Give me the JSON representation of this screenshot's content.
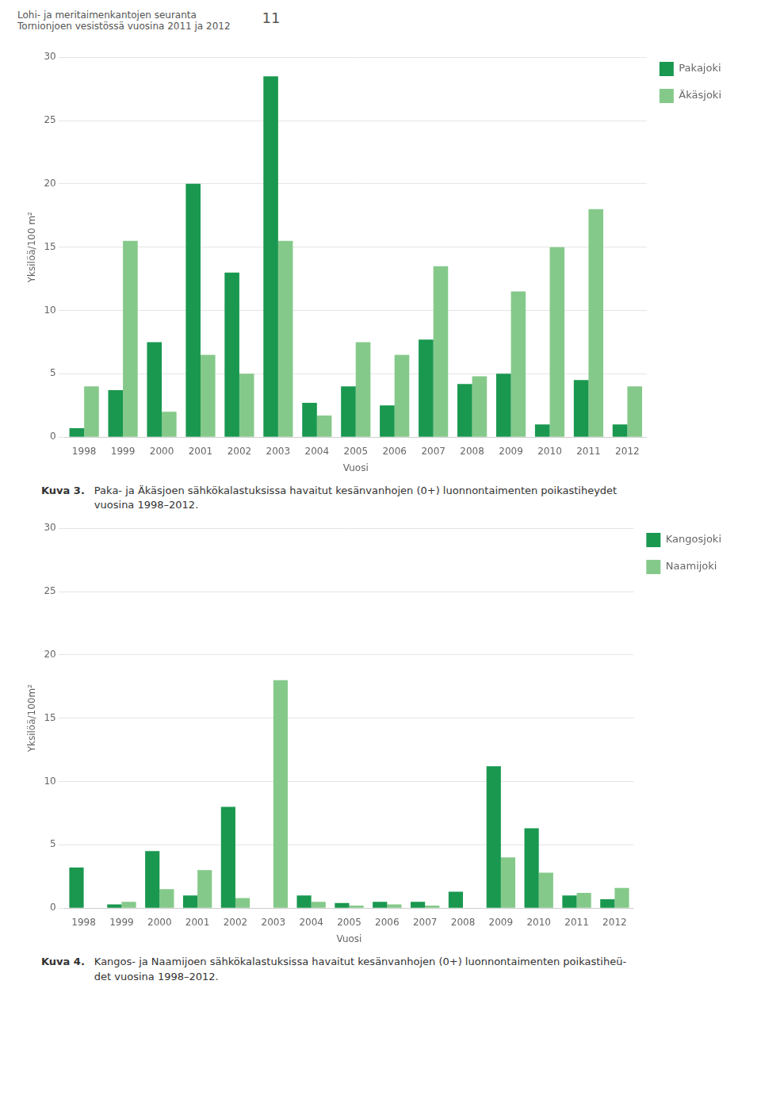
{
  "annotations": [
    "Lohi- ja meritaimenkantojen seuranta\nTornionjoen vesistössä vuosina 2011 ja 2012",
    "11"
  ],
  "chart_data": [
    {
      "type": "bar",
      "categories": [
        "1998",
        "1999",
        "2000",
        "2001",
        "2002",
        "2003",
        "2004",
        "2005",
        "2006",
        "2007",
        "2008",
        "2009",
        "2010",
        "2011",
        "2012"
      ],
      "series": [
        {
          "name": "Pakajoki",
          "color": "#1a9850",
          "values": [
            0.7,
            3.7,
            7.5,
            20.0,
            13.0,
            28.5,
            2.7,
            4.0,
            2.5,
            7.7,
            4.2,
            5.0,
            1.0,
            4.5,
            1.0
          ]
        },
        {
          "name": "Äkäsjoki",
          "color": "#85c98a",
          "values": [
            4.0,
            15.5,
            2.0,
            6.5,
            5.0,
            15.5,
            1.7,
            7.5,
            6.5,
            13.5,
            4.8,
            11.5,
            15.0,
            18.0,
            4.0
          ]
        }
      ],
      "ylabel": "Yksilöä/100 m²",
      "xlabel": "Vuosi",
      "ylim": [
        0,
        30
      ],
      "yticks": [
        0,
        5,
        10,
        15,
        20,
        25,
        30
      ],
      "grid": true,
      "legend": "right",
      "annotations": [
        "Kuva 3.",
        "Paka- ja Äkäsjoen sähkökalastuksissa havaitut kesänvanhojen (0+) luonnontaimenten poikastiheydet\nvuosina 1998–2012."
      ]
    },
    {
      "type": "bar",
      "categories": [
        "1998",
        "1999",
        "2000",
        "2001",
        "2002",
        "2003",
        "2004",
        "2005",
        "2006",
        "2007",
        "2008",
        "2009",
        "2010",
        "2011",
        "2012"
      ],
      "series": [
        {
          "name": "Kangosjoki",
          "color": "#1a9850",
          "values": [
            3.2,
            0.3,
            4.5,
            1.0,
            8.0,
            0.0,
            1.0,
            0.4,
            0.5,
            0.5,
            1.3,
            11.2,
            6.3,
            1.0,
            0.7
          ]
        },
        {
          "name": "Naamijoki",
          "color": "#85c98a",
          "values": [
            0.0,
            0.5,
            1.5,
            3.0,
            0.8,
            18.0,
            0.5,
            0.2,
            0.3,
            0.2,
            0.0,
            4.0,
            2.8,
            1.2,
            1.6
          ]
        }
      ],
      "ylabel": "Yksilöä/100m²",
      "xlabel": "Vuosi",
      "ylim": [
        0,
        30
      ],
      "yticks": [
        0,
        5,
        10,
        15,
        20,
        25,
        30
      ],
      "grid": true,
      "legend": "right",
      "annotations": [
        "Kuva 4.",
        "Kangos- ja Naamijoen sähkökalastuksissa havaitut kesänvanhojen (0+) luonnontaimenten poikastiheü-\ndet vuosina 1998–2012."
      ]
    }
  ]
}
